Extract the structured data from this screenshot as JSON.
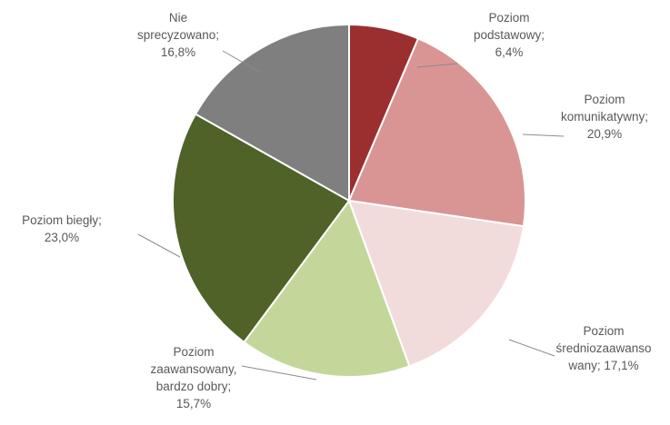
{
  "chart_data": {
    "type": "pie",
    "title": "",
    "legend": "none",
    "slices": [
      {
        "category": "Poziom podstawowy",
        "value": 6.4,
        "label_lines": [
          "Poziom",
          "podstawowy;",
          "6,4%"
        ],
        "color": "#9b2f2f"
      },
      {
        "category": "Poziom komunikatywny",
        "value": 20.9,
        "label_lines": [
          "Poziom",
          "komunikatywny;",
          "20,9%"
        ],
        "color": "#d99594"
      },
      {
        "category": "Poziom średniozaawansowany",
        "value": 17.1,
        "label_lines": [
          "Poziom",
          "średniozaawanso",
          "wany; 17,1%"
        ],
        "color": "#f2dcdb"
      },
      {
        "category": "Poziom zaawansowany, bardzo dobry",
        "value": 15.7,
        "label_lines": [
          "Poziom",
          "zaawansowany,",
          "bardzo dobry;",
          "15,7%"
        ],
        "color": "#c4d79b"
      },
      {
        "category": "Poziom biegły",
        "value": 23.0,
        "label_lines": [
          "Poziom biegły;",
          "23,0%"
        ],
        "color": "#4f6228"
      },
      {
        "category": "Nie sprecyzowano",
        "value": 16.8,
        "label_lines": [
          "Nie",
          "sprecyzowano;",
          "16,8%"
        ],
        "color": "#7f7f7f"
      }
    ]
  }
}
